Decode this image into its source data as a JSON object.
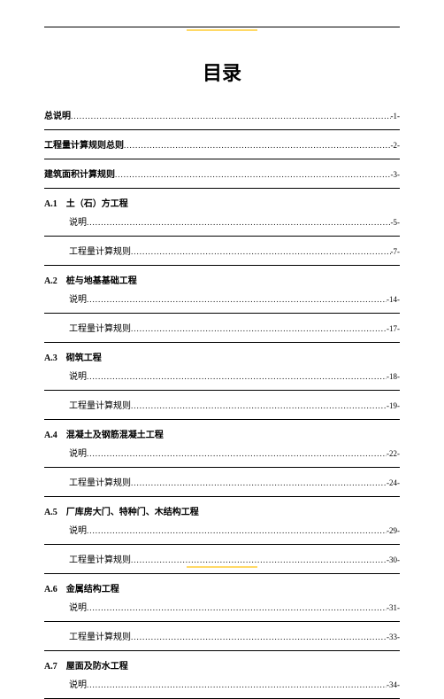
{
  "title": "目录",
  "top_entries": [
    {
      "label": "总说明",
      "page": "-1-",
      "bold": true
    },
    {
      "label": "工程量计算规则总则",
      "page": "-2-",
      "bold": true
    },
    {
      "label": "建筑面积计算规则",
      "page": "-3-",
      "bold": true
    }
  ],
  "sections": [
    {
      "heading": "A.1　土（石）方工程",
      "items": [
        {
          "label": "说明",
          "page": "-5-"
        },
        {
          "label": "工程量计算规则",
          "page": "-7-"
        }
      ]
    },
    {
      "heading": "A.2　桩与地基基础工程",
      "items": [
        {
          "label": "说明",
          "page": "-14-"
        },
        {
          "label": "工程量计算规则",
          "page": "-17-"
        }
      ]
    },
    {
      "heading": "A.3　砌筑工程",
      "items": [
        {
          "label": "说明",
          "page": "-18-"
        },
        {
          "label": "工程量计算规则",
          "page": "-19-"
        }
      ]
    },
    {
      "heading": "A.4　混凝土及钢筋混凝土工程",
      "items": [
        {
          "label": "说明",
          "page": "-22-"
        },
        {
          "label": "工程量计算规则",
          "page": "-24-"
        }
      ]
    },
    {
      "heading": "A.5　厂库房大门、特种门、木结构工程",
      "items": [
        {
          "label": "说明",
          "page": "-29-"
        },
        {
          "label": "工程量计算规则",
          "page": "-30-"
        }
      ]
    },
    {
      "heading": "A.6　金属结构工程",
      "items": [
        {
          "label": "说明",
          "page": "-31-"
        },
        {
          "label": "工程量计算规则",
          "page": "-33-"
        }
      ]
    },
    {
      "heading": "A.7　屋面及防水工程",
      "items": [
        {
          "label": "说明",
          "page": "-34-"
        }
      ]
    }
  ]
}
